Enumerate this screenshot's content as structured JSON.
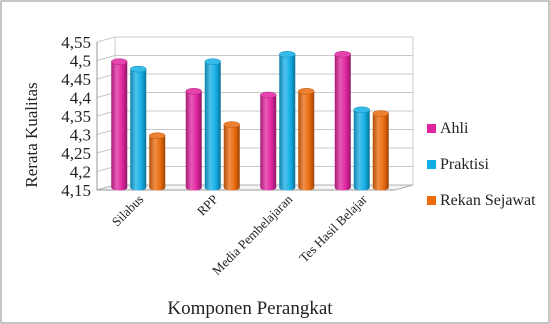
{
  "chart_data": {
    "type": "bar",
    "title": "",
    "xlabel": "Komponen Perangkat",
    "ylabel": "Rerata Kualitas",
    "ylim": [
      4.15,
      4.55
    ],
    "yticks": [
      "4,15",
      "4,2",
      "4,25",
      "4,3",
      "4,35",
      "4,4",
      "4,45",
      "4,5",
      "4,55"
    ],
    "categories": [
      "Silabus",
      "RPP",
      "Media Pembelajaran",
      "Tes Hasil Belajar"
    ],
    "series": [
      {
        "name": "Ahli",
        "values": [
          4.49,
          4.41,
          4.4,
          4.51
        ],
        "color": "#e0249f"
      },
      {
        "name": "Praktisi",
        "values": [
          4.47,
          4.49,
          4.51,
          4.36
        ],
        "color": "#13aee6"
      },
      {
        "name": "Rekan Sejawat",
        "values": [
          4.29,
          4.32,
          4.41,
          4.35
        ],
        "color": "#ea6a0c"
      }
    ],
    "grid": true,
    "legend_position": "right",
    "style": "3d-cylinder"
  }
}
